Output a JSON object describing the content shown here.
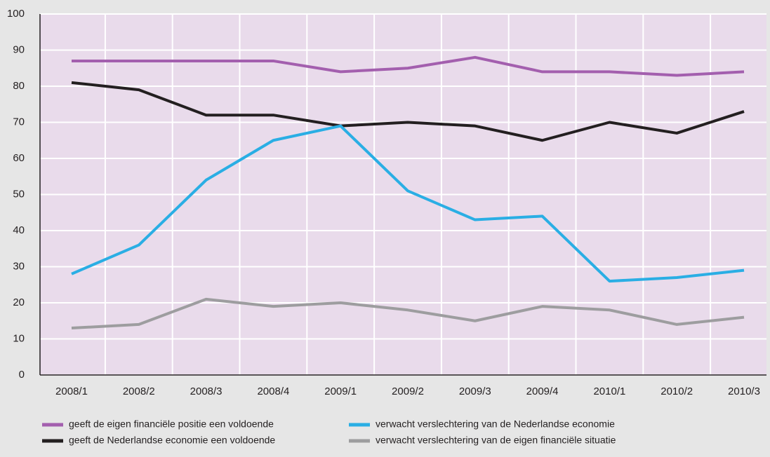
{
  "chart_data": {
    "type": "line",
    "categories": [
      "2008/1",
      "2008/2",
      "2008/3",
      "2008/4",
      "2009/1",
      "2009/2",
      "2009/3",
      "2009/4",
      "2010/1",
      "2010/2",
      "2010/3"
    ],
    "series": [
      {
        "name": "geeft de eigen financiële positie een voldoende",
        "color": "#a35fae",
        "values": [
          87,
          87,
          87,
          87,
          84,
          85,
          88,
          84,
          84,
          83,
          84
        ]
      },
      {
        "name": "geeft de Nederlandse economie een voldoende",
        "color": "#231f20",
        "values": [
          81,
          79,
          72,
          72,
          69,
          70,
          69,
          65,
          70,
          67,
          73
        ]
      },
      {
        "name": "verwacht verslechtering van de Nederlandse economie",
        "color": "#2aaee4",
        "values": [
          28,
          36,
          54,
          65,
          69,
          51,
          43,
          44,
          26,
          27,
          29
        ]
      },
      {
        "name": "verwacht verslechtering van de eigen financiële situatie",
        "color": "#9d9d9f",
        "values": [
          13,
          14,
          21,
          19,
          20,
          18,
          15,
          19,
          18,
          14,
          16
        ]
      }
    ],
    "ylim": [
      0,
      100
    ],
    "yticks": [
      0,
      10,
      20,
      30,
      40,
      50,
      60,
      70,
      80,
      90,
      100
    ],
    "grid": true
  }
}
